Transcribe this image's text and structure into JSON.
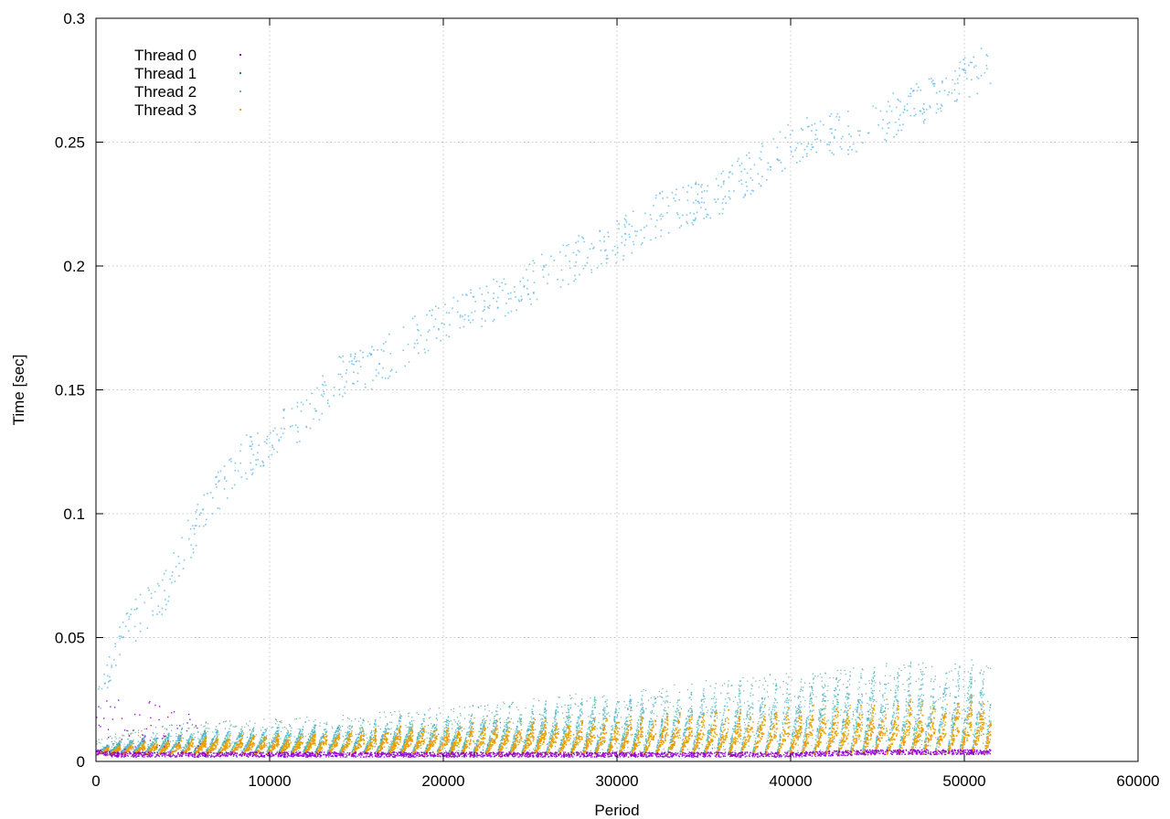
{
  "chart_data": {
    "type": "scatter",
    "title": "",
    "xlabel": "Period",
    "ylabel": "Time [sec]",
    "xlim": [
      0,
      60000
    ],
    "ylim": [
      0,
      0.3
    ],
    "xticks": [
      0,
      10000,
      20000,
      30000,
      40000,
      50000,
      60000
    ],
    "yticks": [
      0,
      0.05,
      0.1,
      0.15,
      0.2,
      0.25,
      0.3
    ],
    "xtick_labels": [
      "0",
      "10000",
      "20000",
      "30000",
      "40000",
      "50000",
      "60000"
    ],
    "ytick_labels": [
      "0",
      "0.05",
      "0.1",
      "0.15",
      "0.2",
      "0.25",
      "0.3"
    ],
    "grid": true,
    "legend_position": "top-left",
    "x_max_data": 51500,
    "series": [
      {
        "name": "Thread 0",
        "color": "#9400d3",
        "points": [
          [
            0,
            0.004
          ],
          [
            1000,
            0.003
          ],
          [
            2000,
            0.003
          ],
          [
            3000,
            0.003
          ],
          [
            5000,
            0.003
          ],
          [
            10000,
            0.003
          ],
          [
            15000,
            0.003
          ],
          [
            20000,
            0.003
          ],
          [
            25000,
            0.003
          ],
          [
            30000,
            0.003
          ],
          [
            35000,
            0.003
          ],
          [
            40000,
            0.003
          ],
          [
            45000,
            0.004
          ],
          [
            50000,
            0.004
          ],
          [
            51400,
            0.004
          ]
        ]
      },
      {
        "name": "Thread 1",
        "color": "#009e73",
        "points": [
          [
            0,
            0.006
          ],
          [
            1000,
            0.008
          ],
          [
            2000,
            0.01
          ],
          [
            5000,
            0.013
          ],
          [
            10000,
            0.015
          ],
          [
            15000,
            0.017
          ],
          [
            20000,
            0.02
          ],
          [
            25000,
            0.024
          ],
          [
            30000,
            0.028
          ],
          [
            35000,
            0.032
          ],
          [
            40000,
            0.036
          ],
          [
            45000,
            0.039
          ],
          [
            50000,
            0.04
          ],
          [
            51400,
            0.04
          ]
        ]
      },
      {
        "name": "Thread 2",
        "color": "#56b4e9",
        "points": [
          [
            200,
            0.03
          ],
          [
            1000,
            0.045
          ],
          [
            2000,
            0.055
          ],
          [
            4000,
            0.07
          ],
          [
            6000,
            0.1
          ],
          [
            8000,
            0.12
          ],
          [
            10000,
            0.13
          ],
          [
            12000,
            0.14
          ],
          [
            14000,
            0.155
          ],
          [
            16000,
            0.16
          ],
          [
            18000,
            0.17
          ],
          [
            20000,
            0.178
          ],
          [
            24000,
            0.19
          ],
          [
            28000,
            0.205
          ],
          [
            30000,
            0.21
          ],
          [
            32000,
            0.22
          ],
          [
            36000,
            0.23
          ],
          [
            40000,
            0.25
          ],
          [
            44000,
            0.255
          ],
          [
            48000,
            0.268
          ],
          [
            51000,
            0.28
          ]
        ]
      },
      {
        "name": "Thread 3",
        "color": "#e69f00",
        "points": [
          [
            0,
            0.005
          ],
          [
            1000,
            0.007
          ],
          [
            2000,
            0.008
          ],
          [
            5000,
            0.01
          ],
          [
            10000,
            0.012
          ],
          [
            15000,
            0.014
          ],
          [
            20000,
            0.016
          ],
          [
            25000,
            0.018
          ],
          [
            30000,
            0.02
          ],
          [
            35000,
            0.022
          ],
          [
            40000,
            0.024
          ],
          [
            45000,
            0.026
          ],
          [
            50000,
            0.027
          ],
          [
            51400,
            0.028
          ]
        ]
      }
    ]
  }
}
